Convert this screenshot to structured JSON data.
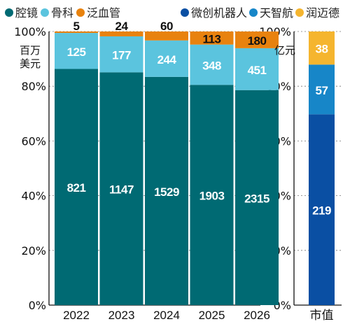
{
  "legend": {
    "left": [
      {
        "label": "腔镜",
        "color": "#006a73"
      },
      {
        "label": "骨科",
        "color": "#5bc4de"
      },
      {
        "label": "泛血管",
        "color": "#e8820e"
      }
    ],
    "right": [
      {
        "label": "微创机器人",
        "color": "#0a4fa3"
      },
      {
        "label": "天智航",
        "color": "#1786c8"
      },
      {
        "label": "润迈德",
        "color": "#f5b52f"
      }
    ]
  },
  "left_unit": [
    "百万",
    "美元"
  ],
  "right_unit": "亿元",
  "chart_data": [
    {
      "type": "bar",
      "stacked": true,
      "normalized": true,
      "categories": [
        "2022",
        "2023",
        "2024",
        "2025",
        "2026"
      ],
      "series": [
        {
          "name": "腔镜",
          "values": [
            821,
            1147,
            1529,
            1903,
            2315
          ],
          "color": "#006a73"
        },
        {
          "name": "骨科",
          "values": [
            125,
            177,
            244,
            348,
            451
          ],
          "color": "#5bc4de"
        },
        {
          "name": "泛血管",
          "values": [
            5,
            24,
            60,
            113,
            180
          ],
          "color": "#e8820e"
        }
      ],
      "yticks": [
        "0%",
        "20%",
        "40%",
        "60%",
        "80%",
        "100%"
      ],
      "ylim": [
        0,
        100
      ],
      "ylabel": "百万美元"
    },
    {
      "type": "bar",
      "stacked": true,
      "normalized": true,
      "categories": [
        "市值"
      ],
      "series": [
        {
          "name": "微创机器人",
          "values": [
            219
          ],
          "color": "#0a4fa3"
        },
        {
          "name": "天智航",
          "values": [
            57
          ],
          "color": "#1786c8"
        },
        {
          "name": "润迈德",
          "values": [
            38
          ],
          "color": "#f5b52f"
        }
      ],
      "yticks": [
        "0%",
        "20%",
        "40%",
        "60%",
        "80%",
        "100%"
      ],
      "ylim": [
        0,
        100
      ],
      "ylabel": "亿元"
    }
  ]
}
